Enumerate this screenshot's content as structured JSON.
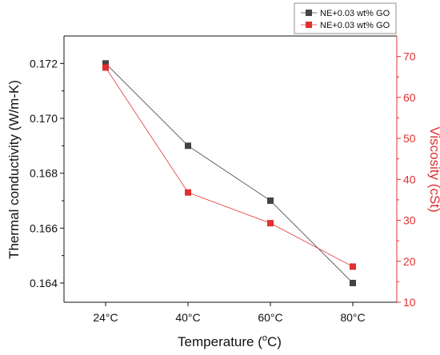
{
  "chart_data": {
    "type": "line",
    "categories": [
      "24°C",
      "40°C",
      "60°C",
      "80°C"
    ],
    "xlabel": "Temperature (°C)",
    "xlabel_parts": {
      "pre": "Temperature (",
      "sup": "o",
      "post": "C)"
    },
    "series": [
      {
        "name": "NE+0.03 wt% GO",
        "axis": "left",
        "color": "#444444",
        "values": [
          0.172,
          0.169,
          0.167,
          0.164
        ]
      },
      {
        "name": "NE+0.03 wt% GO",
        "axis": "right",
        "color": "#e03030",
        "values": [
          67.3,
          36.8,
          29.3,
          18.7
        ]
      }
    ],
    "y_left": {
      "label": "Thermal conductivity (W/m-K)",
      "ylim": [
        0.1633,
        0.173
      ],
      "ticks": [
        0.164,
        0.166,
        0.168,
        0.17,
        0.172
      ],
      "tick_labels": [
        "0.164",
        "0.166",
        "0.168",
        "0.170",
        "0.172"
      ],
      "color": "#111111"
    },
    "y_right": {
      "label": "Viscosity (cSt)",
      "ylim": [
        10,
        75
      ],
      "ticks": [
        10,
        20,
        30,
        40,
        50,
        60,
        70
      ],
      "tick_labels": [
        "10",
        "20",
        "30",
        "40",
        "50",
        "60",
        "70"
      ],
      "color": "#e03030"
    },
    "legend_position": "top-right",
    "grid": false
  }
}
